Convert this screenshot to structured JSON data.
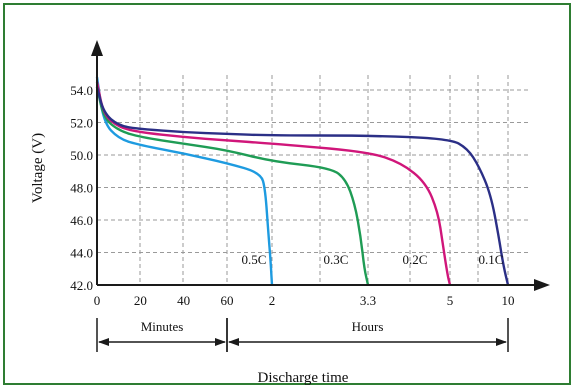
{
  "colors": {
    "frame": "#2e7d32",
    "grid": "#9a9a9a",
    "axis": "#1a1a1a"
  },
  "chart_data": {
    "type": "line",
    "title": "",
    "xlabel": "Discharge time",
    "ylabel": "Voltage (V)",
    "ylim": [
      42.0,
      55.5
    ],
    "grid": true,
    "y_ticks": [
      "42.0",
      "44.0",
      "46.0",
      "48.0",
      "50.0",
      "52.0",
      "54.0"
    ],
    "y_tick_values": [
      42,
      44,
      46,
      48,
      50,
      52,
      54
    ],
    "x_ticks": [
      "0",
      "20",
      "40",
      "60",
      "2",
      "3.3",
      "5",
      "10"
    ],
    "x_tick_values": [
      0,
      20,
      40,
      60,
      2,
      3.3,
      5,
      10
    ],
    "x_units": [
      "min",
      "min",
      "min",
      "min",
      "h",
      "h",
      "h",
      "h"
    ],
    "x_ranges": [
      {
        "label": "Minutes",
        "from": 0,
        "to": 60,
        "unit": "min"
      },
      {
        "label": "Hours",
        "from": 60,
        "to": 10,
        "unit": "min-to-h"
      }
    ],
    "series": [
      {
        "name": "0.5C",
        "color": "#1e9be0",
        "points": [
          [
            0,
            54.8
          ],
          [
            3,
            52.0
          ],
          [
            10,
            51.0
          ],
          [
            20,
            50.6
          ],
          [
            40,
            50.1
          ],
          [
            60,
            49.5
          ],
          [
            1.5,
            48.9
          ],
          [
            1.7,
            47.9
          ],
          [
            1.85,
            45.0
          ],
          [
            1.95,
            43.2
          ],
          [
            2.0,
            42.0
          ]
        ]
      },
      {
        "name": "0.3C",
        "color": "#1f9c55",
        "points": [
          [
            0,
            54.2
          ],
          [
            3,
            52.3
          ],
          [
            10,
            51.5
          ],
          [
            20,
            51.1
          ],
          [
            40,
            50.7
          ],
          [
            60,
            50.3
          ],
          [
            2,
            49.6
          ],
          [
            2.8,
            49.2
          ],
          [
            3.0,
            48.5
          ],
          [
            3.12,
            47.0
          ],
          [
            3.2,
            45.0
          ],
          [
            3.25,
            43.0
          ],
          [
            3.3,
            42.0
          ]
        ]
      },
      {
        "name": "0.2C",
        "color": "#d0167a",
        "points": [
          [
            0,
            54.5
          ],
          [
            3,
            52.5
          ],
          [
            10,
            51.7
          ],
          [
            20,
            51.4
          ],
          [
            40,
            51.1
          ],
          [
            60,
            50.9
          ],
          [
            2,
            50.7
          ],
          [
            3.3,
            50.2
          ],
          [
            4.0,
            49.5
          ],
          [
            4.5,
            48.3
          ],
          [
            4.75,
            46.5
          ],
          [
            4.85,
            44.5
          ],
          [
            4.95,
            42.6
          ],
          [
            5.0,
            42.0
          ]
        ]
      },
      {
        "name": "0.1C",
        "color": "#2b2f86",
        "points": [
          [
            0,
            54.2
          ],
          [
            3,
            52.6
          ],
          [
            10,
            51.8
          ],
          [
            20,
            51.6
          ],
          [
            40,
            51.4
          ],
          [
            60,
            51.3
          ],
          [
            2,
            51.2
          ],
          [
            3.3,
            51.2
          ],
          [
            5,
            51.0
          ],
          [
            6.5,
            50.4
          ],
          [
            7.5,
            49.3
          ],
          [
            8.5,
            47.6
          ],
          [
            9.2,
            45.0
          ],
          [
            9.6,
            43.2
          ],
          [
            10,
            42.0
          ]
        ]
      }
    ]
  }
}
